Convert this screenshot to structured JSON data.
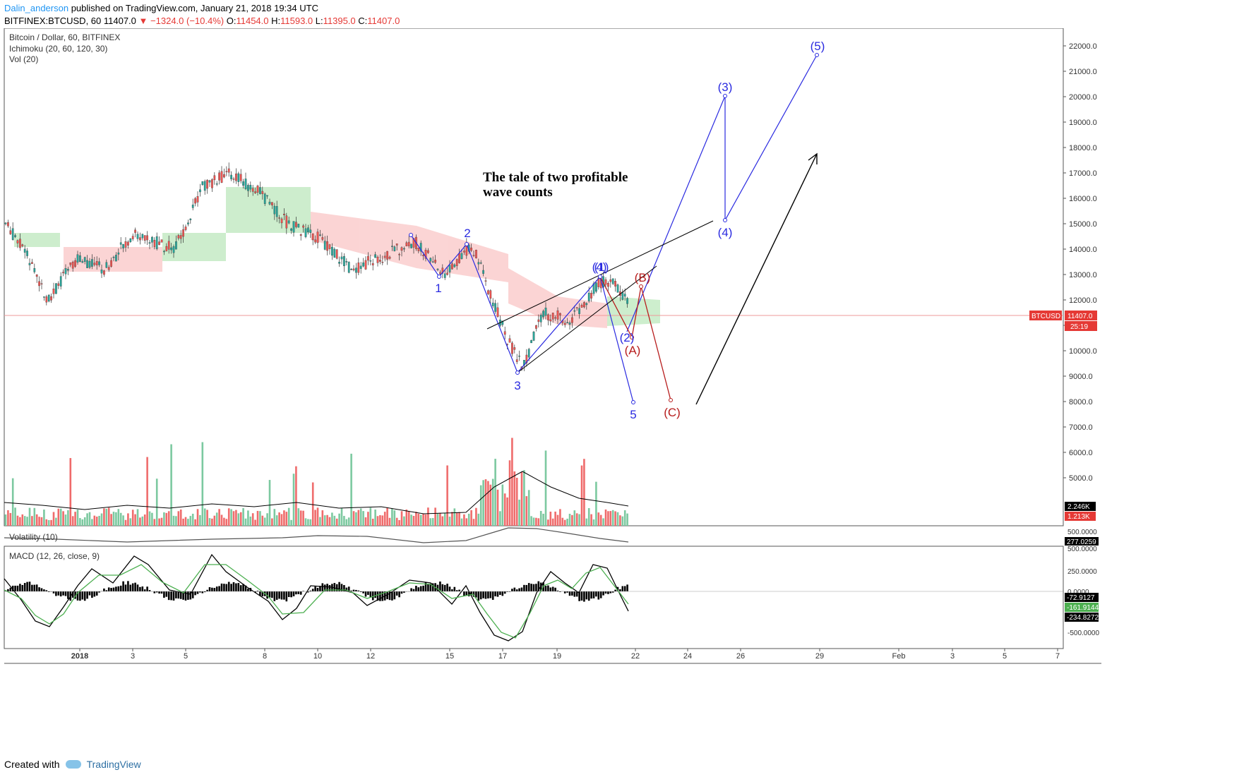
{
  "header": {
    "author": "Dalin_anderson",
    "published_text": "published on TradingView.com, January 21, 2018 19:34 UTC",
    "symbol": "BITFINEX:BTCUSD, 60",
    "last": "11407.0",
    "change": "−1324.0 (−10.4%)",
    "ohlc": {
      "o": "O:",
      "o_val": "11454.0",
      "h": "H:",
      "h_val": "11593.0",
      "l": "L:",
      "l_val": "11395.0",
      "c": "C:",
      "c_val": "11407.0"
    }
  },
  "legend": {
    "title": "Bitcoin / Dollar, 60, BITFINEX",
    "ichimoku": "Ichimoku (20, 60, 120, 30)",
    "vol": "Vol (20)",
    "volatility": "Volatility (10)",
    "macd": "MACD (12, 26, close, 9)"
  },
  "annotation": {
    "line1": "The tale of two profitable",
    "line2": "wave counts"
  },
  "wave_labels": {
    "blue_impulse": [
      "1",
      "2",
      "3",
      "(4)",
      "5"
    ],
    "blue_major": [
      "(1)",
      "(2)",
      "(3)",
      "(4)",
      "(5)"
    ],
    "red_correction": [
      "(A)",
      "(B)",
      "(C)"
    ]
  },
  "price_axis": {
    "ticks": [
      "22000.0",
      "21000.0",
      "20000.0",
      "19000.0",
      "18000.0",
      "17000.0",
      "16000.0",
      "15000.0",
      "14000.0",
      "13000.0",
      "12000.0",
      "11000.0",
      "10000.0",
      "9000.0",
      "8000.0",
      "7000.0",
      "6000.0",
      "5000.0"
    ],
    "price_badge_label": "BTCUSD",
    "price_badge_value": "11407.0",
    "countdown": "25:19",
    "vol_badges": [
      "2.246K",
      "1.213K"
    ],
    "volatility_ticks": [
      "500.0000"
    ],
    "volatility_badge": "277.0259",
    "macd_ticks": [
      "500.0000",
      "250.0000",
      "0.0000",
      "-500.0000"
    ],
    "macd_badges": [
      "-72.9127",
      "-161.9144",
      "-234.8272"
    ]
  },
  "time_axis": {
    "labels": [
      "2018",
      "3",
      "5",
      "8",
      "10",
      "12",
      "15",
      "17",
      "19",
      "22",
      "24",
      "26",
      "29",
      "Feb",
      "3",
      "5",
      "7"
    ]
  },
  "footer": {
    "created_with": "Created with",
    "brand": "TradingView"
  },
  "colors": {
    "up": "#26a69a",
    "down": "#ef5350",
    "wave_blue": "#2a2ae0",
    "wave_red": "#b71c1c",
    "cloud_green": "#c8ecc8",
    "cloud_red": "#fbd0d0",
    "macd": "#000000",
    "signal": "#4caf50"
  },
  "chart_data": {
    "type": "line",
    "title": "Bitcoin / Dollar, 60, BITFINEX",
    "ylim": [
      4500,
      22500
    ],
    "price_path": [
      [
        0,
        15000
      ],
      [
        30,
        13800
      ],
      [
        60,
        12000
      ],
      [
        100,
        13600
      ],
      [
        140,
        13200
      ],
      [
        180,
        14600
      ],
      [
        240,
        14000
      ],
      [
        280,
        16500
      ],
      [
        320,
        17000
      ],
      [
        360,
        16200
      ],
      [
        400,
        15000
      ],
      [
        440,
        14500
      ],
      [
        490,
        13200
      ],
      [
        540,
        13800
      ],
      [
        580,
        14300
      ],
      [
        620,
        13000
      ],
      [
        660,
        14200
      ],
      [
        690,
        12000
      ],
      [
        710,
        10500
      ],
      [
        733,
        9300
      ],
      [
        760,
        11500
      ],
      [
        800,
        11200
      ],
      [
        840,
        12700
      ],
      [
        860,
        12800
      ],
      [
        890,
        11400
      ]
    ],
    "blue_wave": [
      [
        580,
        14500
      ],
      [
        620,
        13000
      ],
      [
        660,
        14300
      ],
      [
        733,
        9200
      ],
      [
        850,
        12900
      ],
      [
        897,
        8000
      ]
    ],
    "blue_major": [
      [
        887,
        11300
      ],
      [
        1027,
        20000
      ],
      [
        1027,
        15100
      ],
      [
        1157,
        21600
      ]
    ],
    "red_abc": [
      [
        850,
        12900
      ],
      [
        895,
        10900
      ],
      [
        908,
        12600
      ],
      [
        950,
        8100
      ]
    ],
    "arrow": [
      [
        986,
        8000
      ],
      [
        1157,
        17800
      ]
    ]
  }
}
